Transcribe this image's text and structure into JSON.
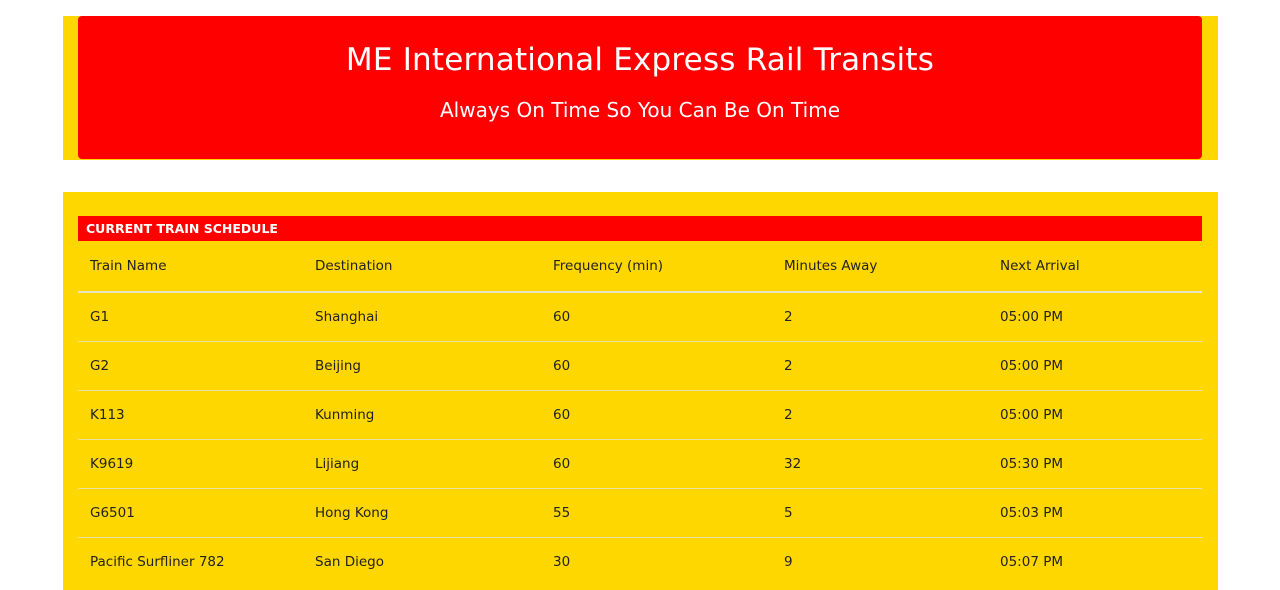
{
  "header": {
    "title": "ME International Express Rail Transits",
    "subtitle": "Always On Time So You Can Be On Time"
  },
  "schedule": {
    "heading": "CURRENT TRAIN SCHEDULE",
    "columns": [
      "Train Name",
      "Destination",
      "Frequency (min)",
      "Minutes Away",
      "Next Arrival"
    ],
    "rows": [
      {
        "name": "G1",
        "destination": "Shanghai",
        "frequency": "60",
        "minutes_away": "2",
        "next_arrival": "05:00 PM"
      },
      {
        "name": "G2",
        "destination": "Beijing",
        "frequency": "60",
        "minutes_away": "2",
        "next_arrival": "05:00 PM"
      },
      {
        "name": "K113",
        "destination": "Kunming",
        "frequency": "60",
        "minutes_away": "2",
        "next_arrival": "05:00 PM"
      },
      {
        "name": "K9619",
        "destination": "Lijiang",
        "frequency": "60",
        "minutes_away": "32",
        "next_arrival": "05:30 PM"
      },
      {
        "name": "G6501",
        "destination": "Hong Kong",
        "frequency": "55",
        "minutes_away": "5",
        "next_arrival": "05:03 PM"
      },
      {
        "name": "Pacific Surfliner 782",
        "destination": "San Diego",
        "frequency": "30",
        "minutes_away": "9",
        "next_arrival": "05:07 PM"
      }
    ]
  },
  "colors": {
    "accent_red": "#FF0000",
    "panel_yellow": "#FFD700",
    "page_background": "#FFFFFF"
  }
}
